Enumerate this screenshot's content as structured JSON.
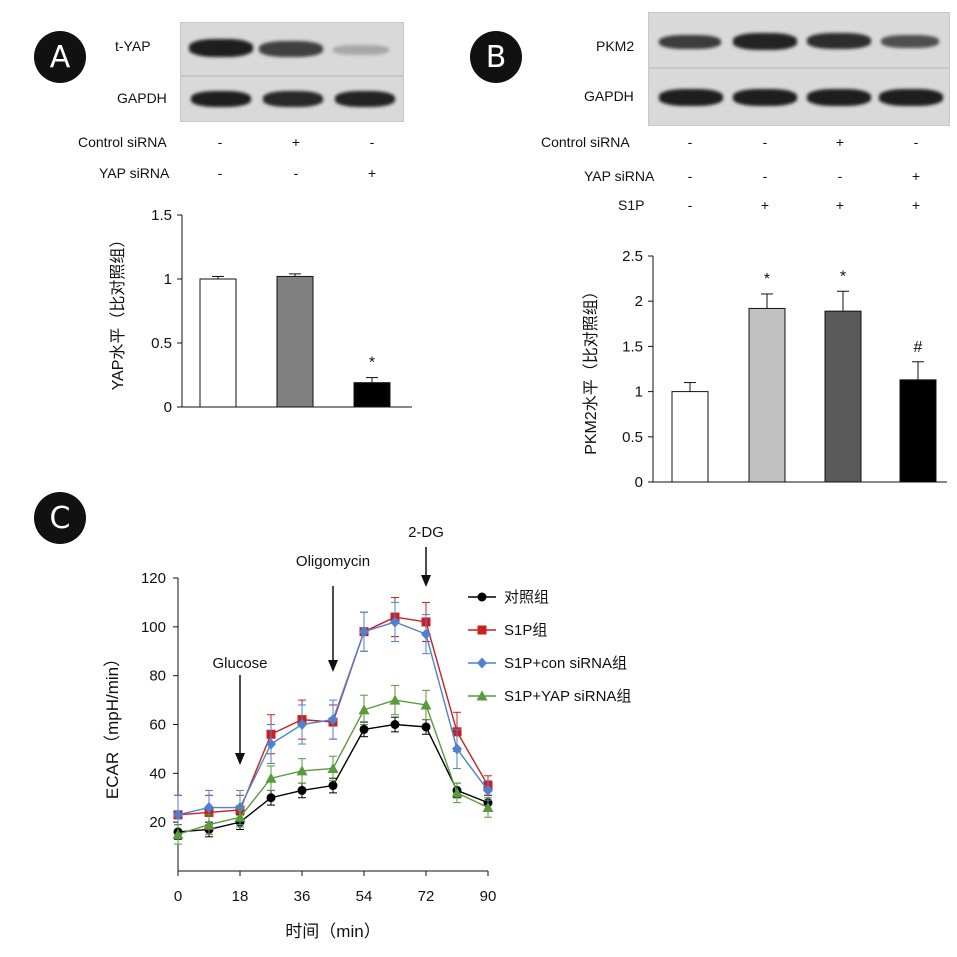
{
  "panels": {
    "a": {
      "badge": "A",
      "blots": [
        {
          "label": "t-YAP",
          "bands": [
            0.95,
            0.78,
            0.25
          ]
        },
        {
          "label": "GAPDH",
          "bands": [
            0.95,
            0.9,
            0.92
          ]
        }
      ],
      "conditions": [
        {
          "label": "Control siRNA",
          "signs": [
            "-",
            "+",
            "-"
          ]
        },
        {
          "label": "YAP siRNA",
          "signs": [
            "-",
            "-",
            "+"
          ]
        }
      ]
    },
    "b": {
      "badge": "B",
      "blots": [
        {
          "label": "PKM2",
          "bands": [
            0.8,
            0.92,
            0.88,
            0.7
          ]
        },
        {
          "label": "GAPDH",
          "bands": [
            0.95,
            0.95,
            0.95,
            0.95
          ]
        }
      ],
      "conditions": [
        {
          "label": "Control siRNA",
          "signs": [
            "-",
            "-",
            "+",
            "-"
          ]
        },
        {
          "label": "YAP siRNA",
          "signs": [
            "-",
            "-",
            "-",
            "+"
          ]
        },
        {
          "label": "S1P",
          "signs": [
            "-",
            "+",
            "+",
            "+"
          ]
        }
      ]
    },
    "c": {
      "badge": "C"
    }
  },
  "chart_data": [
    {
      "type": "bar",
      "panel": "A",
      "ylabel": "YAP水平（比对照组）",
      "ylim": [
        0,
        1.5
      ],
      "yticks": [
        "0",
        "0.5",
        "1",
        "1.5"
      ],
      "categories": [
        "",
        "",
        ""
      ],
      "values": [
        1.0,
        1.02,
        0.19
      ],
      "errors": [
        0.02,
        0.02,
        0.04
      ],
      "annotations": [
        "",
        "",
        "*"
      ],
      "colors": [
        "#ffffff",
        "#808080",
        "#000000"
      ]
    },
    {
      "type": "bar",
      "panel": "B",
      "ylabel": "PKM2水平（比对照组）",
      "ylim": [
        0,
        2.5
      ],
      "yticks": [
        "0",
        "0.5",
        "1",
        "1.5",
        "2",
        "2.5"
      ],
      "categories": [
        "",
        "",
        "",
        ""
      ],
      "values": [
        1.0,
        1.92,
        1.89,
        1.13
      ],
      "errors": [
        0.1,
        0.16,
        0.22,
        0.2
      ],
      "annotations": [
        "",
        "*",
        "*",
        "#"
      ],
      "colors": [
        "#ffffff",
        "#c0c0c0",
        "#595959",
        "#000000"
      ]
    },
    {
      "type": "line",
      "panel": "C",
      "xlabel": "时间（min）",
      "ylabel": "ECAR（mpH/min）",
      "xlim": [
        0,
        90
      ],
      "ylim": [
        0,
        120
      ],
      "xticks": [
        "0",
        "18",
        "36",
        "54",
        "72",
        "90"
      ],
      "yticks": [
        "20",
        "40",
        "60",
        "80",
        "100",
        "120"
      ],
      "x": [
        0,
        9,
        18,
        27,
        36,
        45,
        54,
        63,
        72,
        81,
        90
      ],
      "series": [
        {
          "name": "对照组",
          "color": "#000000",
          "marker": "circle",
          "values": [
            16,
            17,
            20,
            30,
            33,
            35,
            58,
            60,
            59,
            33,
            28
          ],
          "errors": [
            3,
            3,
            3,
            3,
            3,
            3,
            3,
            3,
            3,
            3,
            3
          ]
        },
        {
          "name": "S1P组",
          "color": "#cc1f1f",
          "marker": "square",
          "values": [
            23,
            24,
            25,
            56,
            62,
            61,
            98,
            104,
            102,
            57,
            35
          ],
          "errors": [
            8,
            7,
            6,
            8,
            8,
            7,
            8,
            8,
            8,
            8,
            4
          ]
        },
        {
          "name": "S1P+con siRNA组",
          "color": "#4f81d0",
          "marker": "diamond",
          "values": [
            23,
            26,
            26,
            52,
            60,
            62,
            98,
            102,
            97,
            50,
            33
          ],
          "errors": [
            8,
            7,
            7,
            8,
            8,
            8,
            8,
            8,
            8,
            8,
            4
          ]
        },
        {
          "name": "S1P+YAP siRNA组",
          "color": "#5a9a3c",
          "marker": "triangle",
          "values": [
            15,
            19,
            22,
            38,
            41,
            42,
            66,
            70,
            68,
            32,
            26
          ],
          "errors": [
            4,
            4,
            4,
            5,
            5,
            5,
            6,
            6,
            6,
            4,
            4
          ]
        }
      ],
      "annotations": [
        {
          "text": "Glucose",
          "x": 18
        },
        {
          "text": "Oligomycin",
          "x": 45
        },
        {
          "text": "2-DG",
          "x": 72
        }
      ],
      "legend_position": "top-right"
    }
  ]
}
